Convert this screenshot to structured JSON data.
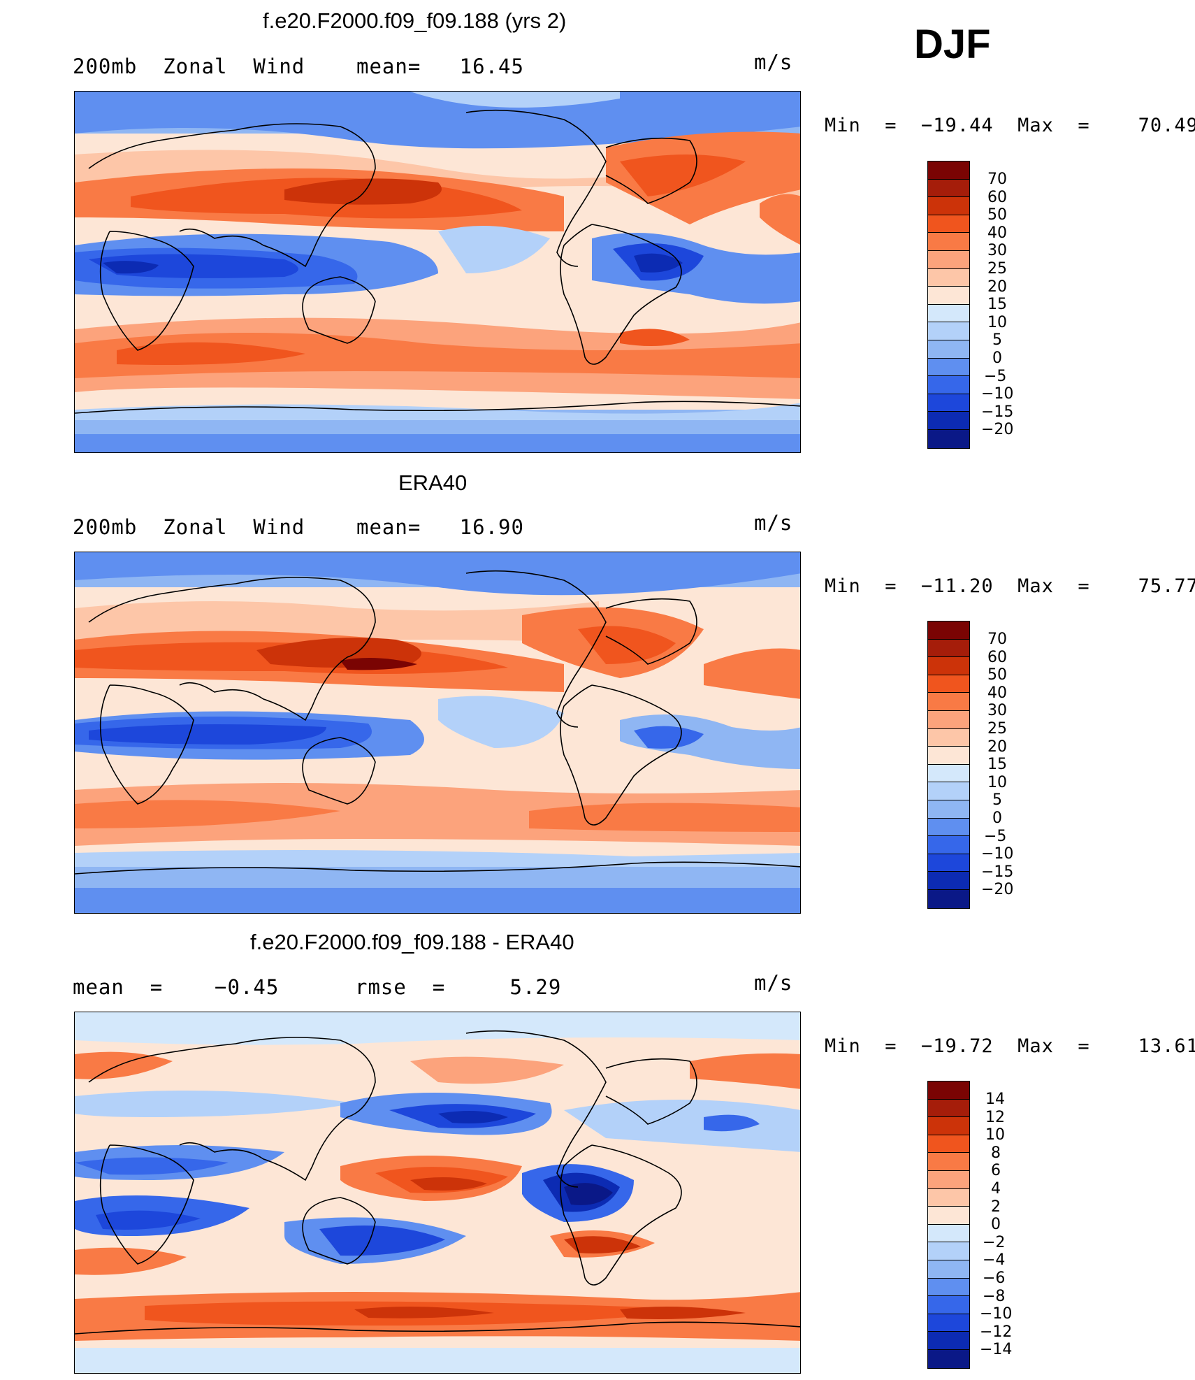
{
  "season": "DJF",
  "panels": [
    {
      "title": "f.e20.F2000.f09_f09.188 (yrs 2)",
      "left_label": "200mb  Zonal  Wind",
      "right_stat": "mean=   16.45",
      "units": "m/s",
      "minmax": "Min  =  −19.44  Max  =    70.49",
      "colorbar_labels": [
        "70",
        "60",
        "50",
        "40",
        "30",
        "25",
        "20",
        "15",
        "10",
        "5",
        "0",
        "−5",
        "−10",
        "−15",
        "−20"
      ]
    },
    {
      "title": "ERA40",
      "left_label": "200mb  Zonal  Wind",
      "right_stat": "mean=   16.90",
      "units": "m/s",
      "minmax": "Min  =  −11.20  Max  =    75.77",
      "colorbar_labels": [
        "70",
        "60",
        "50",
        "40",
        "30",
        "25",
        "20",
        "15",
        "10",
        "5",
        "0",
        "−5",
        "−10",
        "−15",
        "−20"
      ]
    },
    {
      "title": "f.e20.F2000.f09_f09.188 - ERA40",
      "left_label": "mean  =    −0.45",
      "right_stat": "rmse  =     5.29",
      "units": "m/s",
      "minmax": "Min  =  −19.72  Max  =    13.61",
      "colorbar_labels": [
        "14",
        "12",
        "10",
        "8",
        "6",
        "4",
        "2",
        "0",
        "−2",
        "−4",
        "−6",
        "−8",
        "−10",
        "−12",
        "−14"
      ]
    }
  ],
  "colors": {
    "scale": [
      "#7a0403",
      "#a51d0a",
      "#cc3309",
      "#f0551e",
      "#f97a45",
      "#fca37c",
      "#fdc6a8",
      "#fde6d6",
      "#d4e8fb",
      "#b3d1f9",
      "#8fb6f3",
      "#5f8ff0",
      "#3667ea",
      "#1d47db",
      "#0c2bb3",
      "#0a1887"
    ]
  }
}
